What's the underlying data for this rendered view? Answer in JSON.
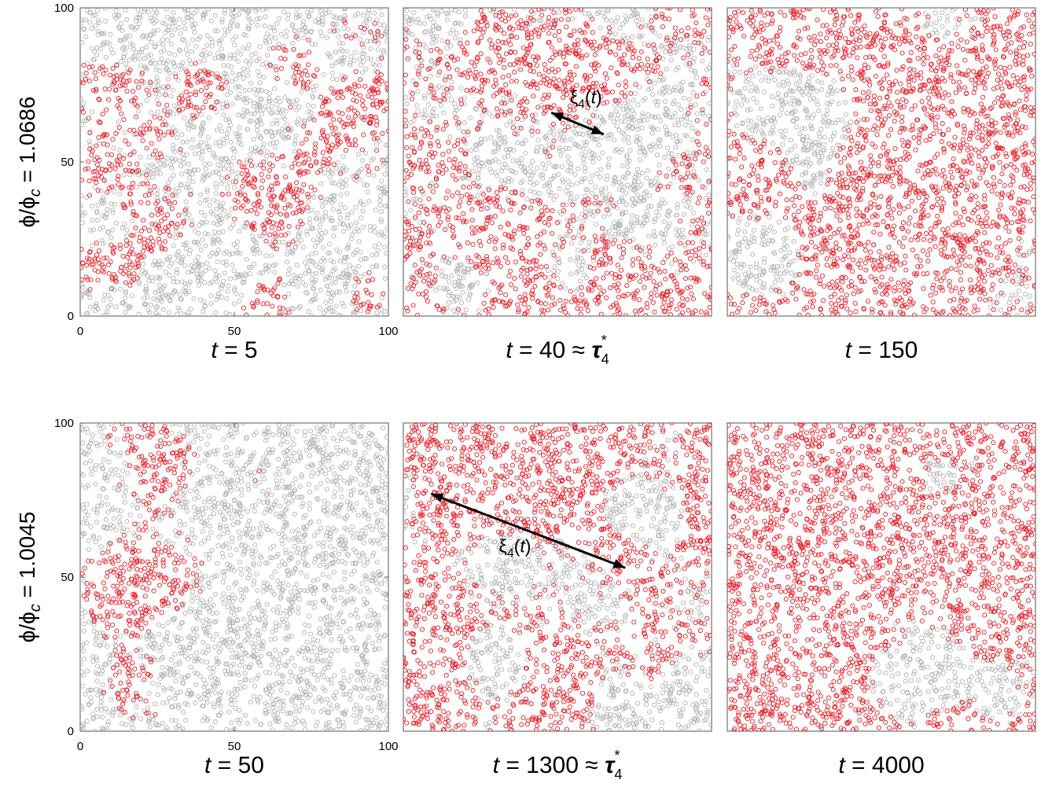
{
  "chart_data": {
    "type": "scatter",
    "description_axis": {
      "x_ticks": [
        "0",
        "50",
        "100"
      ],
      "y_ticks": [
        "0",
        "50",
        "100"
      ],
      "xlim": [
        0,
        100
      ],
      "ylim": [
        0,
        100
      ]
    },
    "colors": {
      "mobile": "#e8202a",
      "immobile": "#b4b4b4",
      "arrow": "#000000"
    },
    "rows": [
      {
        "label_main": "ϕ/ϕ",
        "label_sub": "c",
        "label_value": " = 1.0686",
        "panels": [
          {
            "t": "5",
            "suffix": "",
            "mobile_fraction": 0.35,
            "show_ticks": true,
            "annotation": null
          },
          {
            "t": "40",
            "suffix": " ≈ τ",
            "suffix_sub": "4",
            "suffix_sup": "*",
            "mobile_fraction": 0.55,
            "annotation": {
              "label": "ξ",
              "label_sub": "4",
              "label_tail": "(t)",
              "from": [
                48,
                66
              ],
              "to": [
                65,
                59
              ],
              "label_at": [
                54,
                69
              ]
            }
          },
          {
            "t": "150",
            "suffix": "",
            "mobile_fraction": 0.8,
            "annotation": null
          }
        ]
      },
      {
        "label_main": "ϕ/ϕ",
        "label_sub": "c",
        "label_value": " = 1.0045",
        "panels": [
          {
            "t": "50",
            "suffix": "",
            "mobile_fraction": 0.18,
            "show_ticks": true,
            "annotation": null
          },
          {
            "t": "1300",
            "suffix": " ≈ τ",
            "suffix_sub": "4",
            "suffix_sup": "*",
            "mobile_fraction": 0.68,
            "annotation": {
              "label": "ξ",
              "label_sub": "4",
              "label_tail": "(t)",
              "from": [
                9,
                77
              ],
              "to": [
                72,
                53
              ],
              "label_at": [
                31,
                58
              ]
            }
          },
          {
            "t": "4000",
            "suffix": "",
            "mobile_fraction": 0.88,
            "annotation": null
          }
        ]
      }
    ]
  }
}
